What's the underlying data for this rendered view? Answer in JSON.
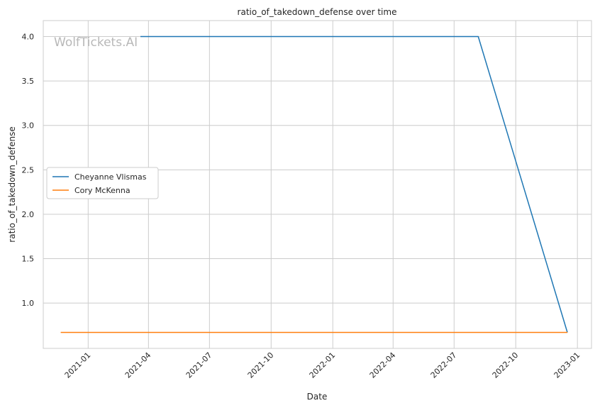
{
  "chart_data": {
    "type": "line",
    "title": "ratio_of_takedown_defense over time",
    "xlabel": "Date",
    "ylabel": "ratio_of_takedown_defense",
    "watermark": "WolfTickets.AI",
    "xlim": [
      "2020-10-26",
      "2023-01-22"
    ],
    "ylim": [
      0.49,
      4.18
    ],
    "x_ticks": [
      {
        "value": "2021-01-01",
        "label": "2021-01"
      },
      {
        "value": "2021-04-01",
        "label": "2021-04"
      },
      {
        "value": "2021-07-01",
        "label": "2021-07"
      },
      {
        "value": "2021-10-01",
        "label": "2021-10"
      },
      {
        "value": "2022-01-01",
        "label": "2022-01"
      },
      {
        "value": "2022-04-01",
        "label": "2022-04"
      },
      {
        "value": "2022-07-01",
        "label": "2022-07"
      },
      {
        "value": "2022-10-01",
        "label": "2022-10"
      },
      {
        "value": "2023-01-01",
        "label": "2023-01"
      }
    ],
    "y_ticks": [
      {
        "value": 1.0,
        "label": "1.0"
      },
      {
        "value": 1.5,
        "label": "1.5"
      },
      {
        "value": 2.0,
        "label": "2.0"
      },
      {
        "value": 2.5,
        "label": "2.5"
      },
      {
        "value": 3.0,
        "label": "3.0"
      },
      {
        "value": 3.5,
        "label": "3.5"
      },
      {
        "value": 4.0,
        "label": "4.0"
      }
    ],
    "grid": true,
    "legend_position": "center-left",
    "series": [
      {
        "name": "Cheyanne Vlismas",
        "color": "#1f77b4",
        "points": [
          {
            "x": "2021-03-20",
            "y": 4.0
          },
          {
            "x": "2022-08-06",
            "y": 4.0
          },
          {
            "x": "2022-12-17",
            "y": 0.67
          }
        ]
      },
      {
        "name": "Cory McKenna",
        "color": "#ff7f0e",
        "points": [
          {
            "x": "2020-11-21",
            "y": 0.67
          },
          {
            "x": "2022-12-17",
            "y": 0.67
          }
        ]
      }
    ]
  }
}
